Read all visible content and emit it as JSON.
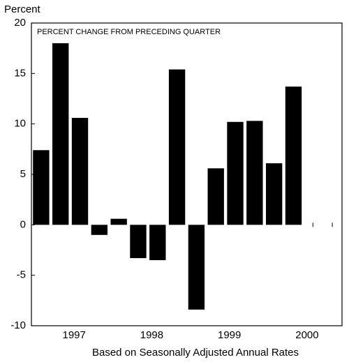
{
  "chart_data": {
    "type": "bar",
    "y_label": "Percent",
    "annotation": "PERCENT CHANGE FROM PRECEDING QUARTER",
    "x_label": "Based on Seasonally Adjusted Annual Rates",
    "categories": [
      null,
      null,
      "1997",
      null,
      null,
      null,
      "1998",
      null,
      null,
      null,
      "1999",
      null,
      null,
      null,
      "2000",
      null
    ],
    "values": [
      7.4,
      18,
      10.6,
      -1,
      0.6,
      -3.3,
      -3.5,
      15.4,
      -8.4,
      5.6,
      10.2,
      10.3,
      6.1,
      13.7,
      null,
      null
    ],
    "color": "#000000",
    "ylim": [
      -10,
      20
    ],
    "yticks": [
      20,
      15,
      10,
      5,
      0,
      -5,
      -10
    ]
  }
}
